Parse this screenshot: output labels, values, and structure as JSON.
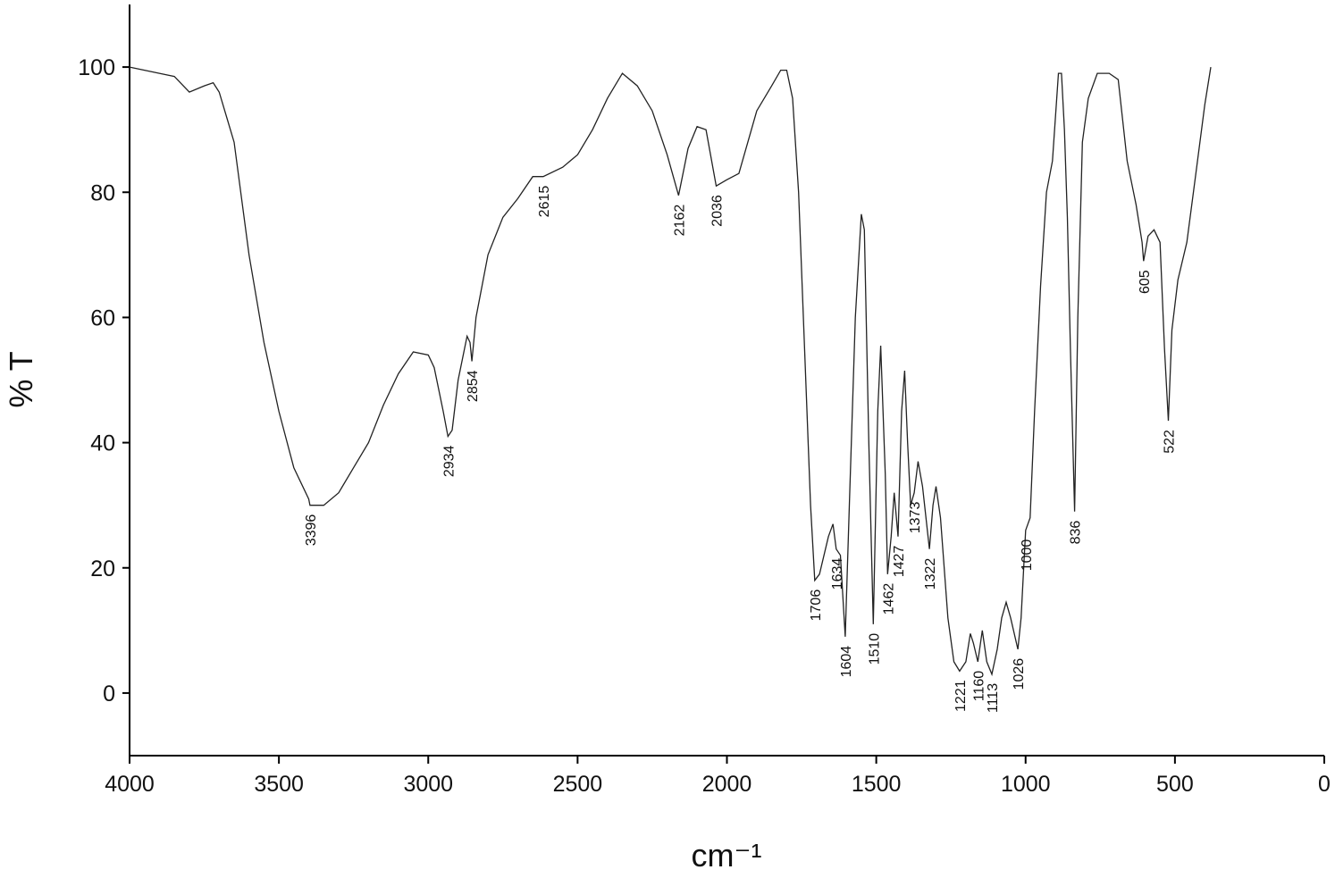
{
  "chart_data": {
    "type": "line",
    "x_label": "cm⁻¹",
    "y_label": "% T",
    "xlim": [
      4000,
      0
    ],
    "ylim": [
      -10,
      110
    ],
    "xticks": [
      4000,
      3500,
      3000,
      2500,
      2000,
      1500,
      1000,
      500,
      0
    ],
    "yticks": [
      0,
      20,
      40,
      60,
      80,
      100
    ],
    "series": [
      {
        "color": "#222222",
        "x": [
          4000,
          3900,
          3850,
          3800,
          3750,
          3720,
          3700,
          3650,
          3600,
          3550,
          3500,
          3450,
          3400,
          3396,
          3350,
          3300,
          3250,
          3200,
          3150,
          3100,
          3050,
          3000,
          2980,
          2950,
          2934,
          2920,
          2900,
          2870,
          2860,
          2854,
          2840,
          2800,
          2750,
          2700,
          2650,
          2615,
          2550,
          2500,
          2450,
          2400,
          2350,
          2300,
          2250,
          2200,
          2162,
          2130,
          2100,
          2070,
          2036,
          2000,
          1960,
          1900,
          1850,
          1820,
          1800,
          1780,
          1760,
          1740,
          1720,
          1706,
          1690,
          1660,
          1645,
          1634,
          1620,
          1604,
          1590,
          1570,
          1550,
          1540,
          1525,
          1510,
          1495,
          1485,
          1470,
          1462,
          1450,
          1440,
          1427,
          1415,
          1405,
          1395,
          1385,
          1373,
          1360,
          1345,
          1322,
          1310,
          1300,
          1285,
          1260,
          1240,
          1221,
          1200,
          1185,
          1175,
          1160,
          1145,
          1130,
          1113,
          1095,
          1080,
          1065,
          1050,
          1026,
          1015,
          1000,
          985,
          970,
          950,
          930,
          910,
          890,
          880,
          870,
          860,
          850,
          836,
          825,
          810,
          790,
          760,
          720,
          690,
          660,
          630,
          610,
          605,
          590,
          570,
          550,
          535,
          522,
          510,
          490,
          460,
          430,
          400,
          380
        ],
        "values": [
          100,
          99,
          98.5,
          96,
          97,
          97.5,
          96,
          88,
          70,
          56,
          45,
          36,
          31,
          30,
          30,
          32,
          36,
          40,
          46,
          51,
          54.5,
          54,
          52,
          45,
          41,
          42,
          50,
          57,
          56,
          53,
          60,
          70,
          76,
          79,
          82.5,
          82.5,
          84,
          86,
          90,
          95,
          99,
          97,
          93,
          86,
          79.5,
          87,
          90.5,
          90,
          81,
          82,
          83,
          93,
          97,
          99.5,
          99.5,
          95,
          80,
          55,
          30,
          18,
          19,
          25,
          27,
          23,
          22,
          9,
          30,
          60,
          76.5,
          74,
          40,
          11,
          45,
          55.5,
          35,
          19,
          25,
          32,
          25,
          45,
          51.5,
          40,
          30,
          32,
          37,
          33,
          23,
          30,
          33,
          28,
          12,
          5,
          3.5,
          5,
          9.5,
          8,
          5,
          10,
          5,
          3,
          7,
          12,
          14.5,
          12,
          7,
          12,
          26,
          28,
          45,
          65,
          80,
          85,
          99,
          99,
          90,
          76,
          55,
          29,
          60,
          88,
          95,
          99,
          99,
          98,
          85,
          78,
          72,
          69,
          73,
          74,
          72,
          55,
          43.5,
          58,
          66,
          72,
          83,
          94,
          100
        ]
      }
    ],
    "peak_labels": [
      3396,
      2934,
      2854,
      2615,
      2162,
      2036,
      1706,
      1634,
      1604,
      1510,
      1462,
      1427,
      1373,
      1322,
      1221,
      1160,
      1113,
      1026,
      1000,
      836,
      605,
      522
    ]
  }
}
